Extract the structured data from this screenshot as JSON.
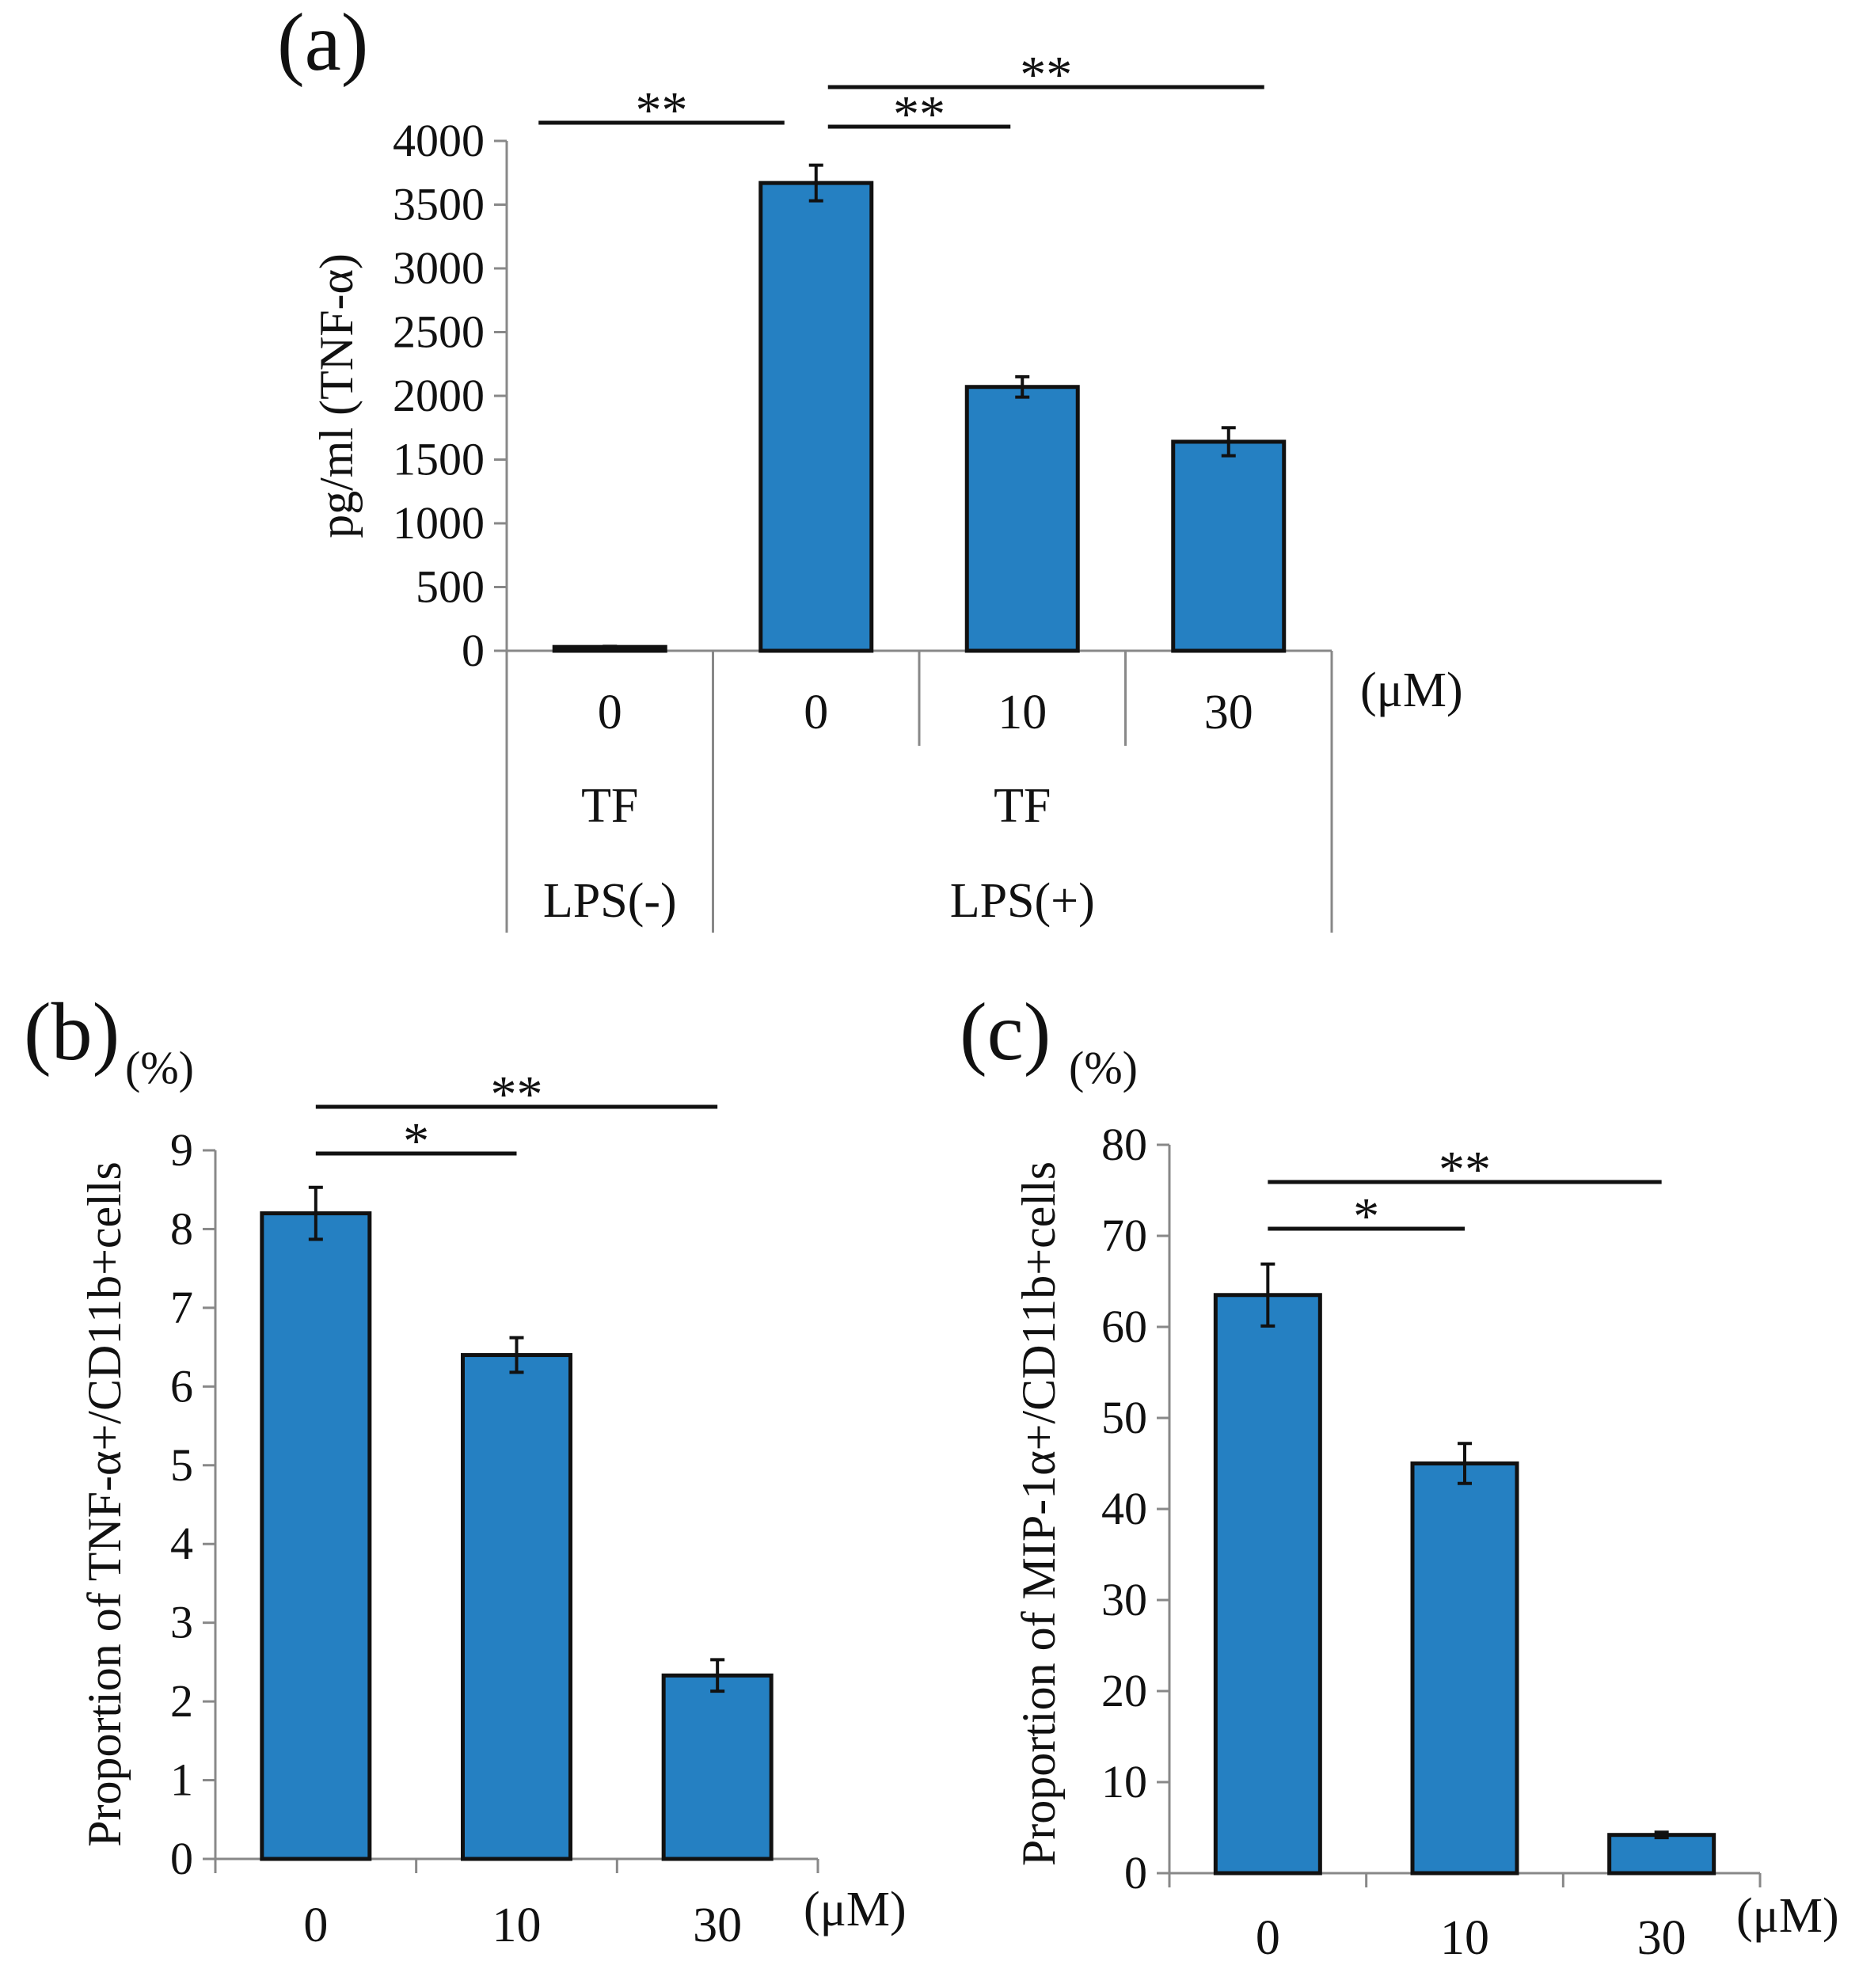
{
  "chart_data": [
    {
      "panel": "(a)",
      "type": "bar",
      "ylabel": "pg/ml (TNF-α)",
      "unit": "(μM)",
      "ylim": [
        0,
        4000
      ],
      "yticks": [
        0,
        500,
        1000,
        1500,
        2000,
        2500,
        3000,
        3500,
        4000
      ],
      "categories": [
        "0",
        "0",
        "10",
        "30"
      ],
      "values": [
        30,
        3670,
        2070,
        1640
      ],
      "errors": [
        5,
        140,
        80,
        110
      ],
      "color": "#2580C2",
      "groups": [
        {
          "row": "TF",
          "label": "TF",
          "span": [
            0,
            0
          ]
        },
        {
          "row": "TF",
          "label": "TF",
          "span": [
            1,
            3
          ]
        },
        {
          "row": "LPS",
          "label": "LPS(-)",
          "span": [
            0,
            0
          ]
        },
        {
          "row": "LPS",
          "label": "LPS(+)",
          "span": [
            1,
            3
          ]
        }
      ],
      "significance": [
        {
          "from": 0,
          "to": 1,
          "label": "**"
        },
        {
          "from": 1,
          "to": 2,
          "label": "**"
        },
        {
          "from": 1,
          "to": 3,
          "label": "**"
        }
      ]
    },
    {
      "panel": "(b)",
      "type": "bar",
      "ylabel": "Proportion of TNF-α+/CD11b+cells",
      "yunit": "(%)",
      "unit": "(μM)",
      "ylim": [
        0,
        9
      ],
      "yticks": [
        0,
        1,
        2,
        3,
        4,
        5,
        6,
        7,
        8,
        9
      ],
      "categories": [
        "0",
        "10",
        "30"
      ],
      "values": [
        8.2,
        6.4,
        2.33
      ],
      "errors": [
        0.33,
        0.22,
        0.2
      ],
      "color": "#2580C2",
      "significance": [
        {
          "from": 0,
          "to": 1,
          "label": "*"
        },
        {
          "from": 0,
          "to": 2,
          "label": "**"
        }
      ]
    },
    {
      "panel": "(c)",
      "type": "bar",
      "ylabel": "Proportion of MIP-1α+/CD11b+cells",
      "yunit": "(%)",
      "unit": "(μM)",
      "ylim": [
        0,
        80
      ],
      "yticks": [
        0,
        10,
        20,
        30,
        40,
        50,
        60,
        70,
        80
      ],
      "categories": [
        "0",
        "10",
        "30"
      ],
      "values": [
        63.5,
        45,
        4.2
      ],
      "errors": [
        3.4,
        2.2,
        0.3
      ],
      "color": "#2580C2",
      "significance": [
        {
          "from": 0,
          "to": 1,
          "label": "*"
        },
        {
          "from": 0,
          "to": 2,
          "label": "**"
        }
      ]
    }
  ]
}
